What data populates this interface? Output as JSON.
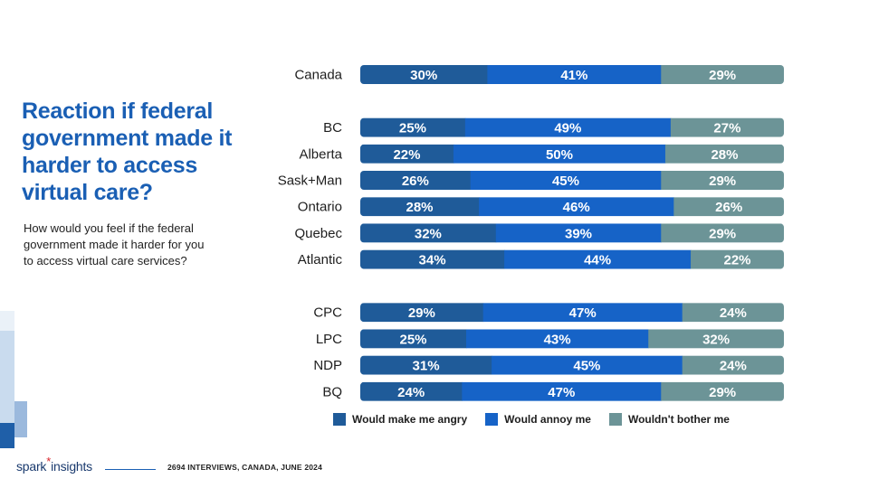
{
  "slide": {
    "title": "Reaction if federal government made it harder to access virtual care?",
    "question": "How would you feel if the federal government made it harder for you to access virtual care services?",
    "footnote": "2694 INTERVIEWS, CANADA, JUNE 2024",
    "logo": {
      "text_1": "spark",
      "star": "*",
      "text_2": "insights"
    }
  },
  "chart_data": {
    "type": "bar",
    "orientation": "horizontal",
    "stacked": true,
    "percent_stacked": true,
    "categories": [
      "Canada",
      "BC",
      "Alberta",
      "Sask+Man",
      "Ontario",
      "Quebec",
      "Atlantic",
      "CPC",
      "LPC",
      "NDP",
      "BQ"
    ],
    "groups": [
      [
        "Canada"
      ],
      [
        "BC",
        "Alberta",
        "Sask+Man",
        "Ontario",
        "Quebec",
        "Atlantic"
      ],
      [
        "CPC",
        "LPC",
        "NDP",
        "BQ"
      ]
    ],
    "series": [
      {
        "name": "Would make me angry",
        "color": "#1f5b99",
        "values": [
          30,
          25,
          22,
          26,
          28,
          32,
          34,
          29,
          25,
          31,
          24
        ]
      },
      {
        "name": "Would annoy me",
        "color": "#1663c7",
        "values": [
          41,
          49,
          50,
          45,
          46,
          39,
          44,
          47,
          43,
          45,
          47
        ]
      },
      {
        "name": "Wouldn't bother me",
        "color": "#6c9497",
        "values": [
          29,
          27,
          28,
          29,
          26,
          29,
          22,
          24,
          32,
          24,
          29
        ]
      }
    ],
    "value_suffix": "%",
    "legend_position": "bottom",
    "grid": false
  }
}
